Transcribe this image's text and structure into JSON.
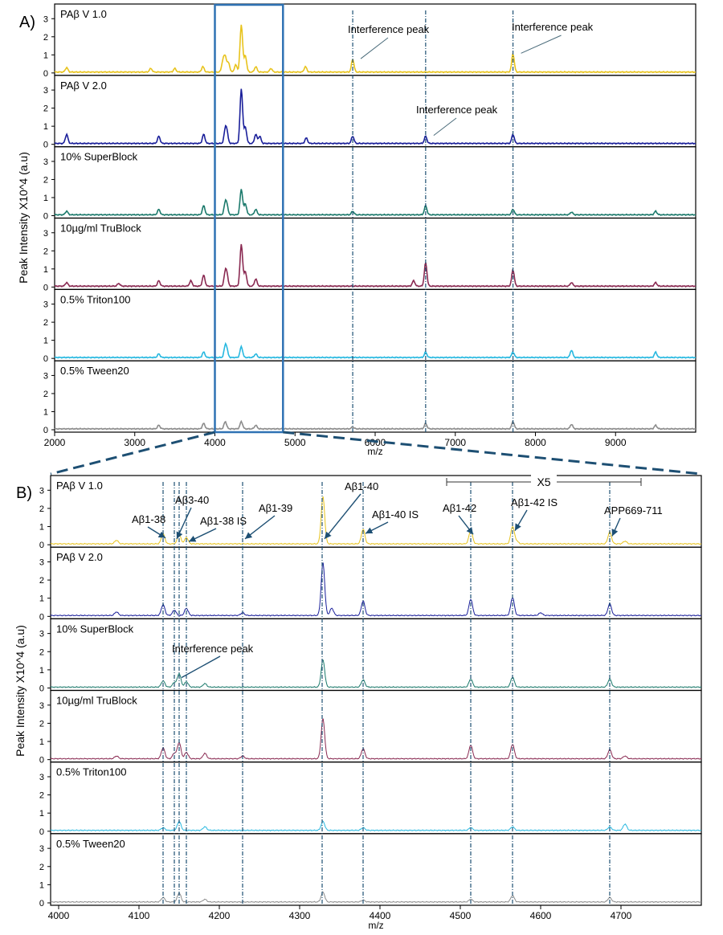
{
  "colors": {
    "pab_v1": "#e8c31c",
    "pab_v2": "#1a1f9a",
    "superblock": "#1c7a6c",
    "trublock": "#8a2a52",
    "triton": "#27b8e0",
    "tween": "#8c8c8c",
    "guide": "#1d4f73",
    "zoom_box": "#2f72b4"
  },
  "chart_data": [
    {
      "type": "line",
      "panel_label": "A)",
      "xlabel": "m/z",
      "ylabel": "Peak Intensity X10^4 (a.u)",
      "xlim": [
        2000,
        10000
      ],
      "ylim": [
        0,
        3.5
      ],
      "xticks": [
        2000,
        3000,
        4000,
        5000,
        6000,
        7000,
        8000,
        9000
      ],
      "yticks": [
        0,
        1,
        2,
        3
      ],
      "zoom_region": [
        4000,
        4850
      ],
      "guide_lines": [
        5720,
        6630,
        7720
      ],
      "series": [
        {
          "name": "PAβ V 1.0",
          "color_key": "pab_v1",
          "peaks": [
            [
              2150,
              0.25
            ],
            [
              3200,
              0.2
            ],
            [
              3500,
              0.2
            ],
            [
              3850,
              0.3
            ],
            [
              4100,
              0.6
            ],
            [
              4130,
              0.8
            ],
            [
              4170,
              0.5
            ],
            [
              4260,
              0.4
            ],
            [
              4330,
              2.6
            ],
            [
              4380,
              0.9
            ],
            [
              4510,
              0.3
            ],
            [
              4700,
              0.2
            ],
            [
              5130,
              0.3
            ],
            [
              5720,
              0.7
            ],
            [
              7720,
              1.0
            ]
          ]
        },
        {
          "name": "PAβ V 2.0",
          "color_key": "pab_v2",
          "peaks": [
            [
              2150,
              0.5
            ],
            [
              3300,
              0.4
            ],
            [
              3860,
              0.5
            ],
            [
              4130,
              0.7
            ],
            [
              4150,
              0.5
            ],
            [
              4330,
              3.0
            ],
            [
              4380,
              0.9
            ],
            [
              4510,
              0.5
            ],
            [
              4560,
              0.4
            ],
            [
              5140,
              0.3
            ],
            [
              5720,
              0.4
            ],
            [
              6630,
              0.4
            ],
            [
              7720,
              0.5
            ]
          ]
        },
        {
          "name": "10% SuperBlock",
          "color_key": "superblock",
          "peaks": [
            [
              2150,
              0.2
            ],
            [
              3300,
              0.3
            ],
            [
              3860,
              0.5
            ],
            [
              4130,
              0.6
            ],
            [
              4150,
              0.4
            ],
            [
              4330,
              1.4
            ],
            [
              4380,
              0.6
            ],
            [
              4510,
              0.3
            ],
            [
              5720,
              0.2
            ],
            [
              6630,
              0.5
            ],
            [
              7720,
              0.3
            ],
            [
              8450,
              0.15
            ],
            [
              9500,
              0.2
            ]
          ]
        },
        {
          "name": "10µg/ml TruBlock",
          "color_key": "trublock",
          "peaks": [
            [
              2150,
              0.2
            ],
            [
              2800,
              0.15
            ],
            [
              3300,
              0.3
            ],
            [
              3700,
              0.3
            ],
            [
              3860,
              0.6
            ],
            [
              4130,
              0.7
            ],
            [
              4150,
              0.5
            ],
            [
              4330,
              2.3
            ],
            [
              4380,
              0.8
            ],
            [
              4510,
              0.4
            ],
            [
              6480,
              0.3
            ],
            [
              6630,
              1.3
            ],
            [
              7720,
              0.9
            ],
            [
              8450,
              0.2
            ],
            [
              9500,
              0.2
            ]
          ]
        },
        {
          "name": "0.5% Triton100",
          "color_key": "triton",
          "peaks": [
            [
              3300,
              0.2
            ],
            [
              3860,
              0.3
            ],
            [
              4130,
              0.6
            ],
            [
              4150,
              0.3
            ],
            [
              4330,
              0.6
            ],
            [
              4510,
              0.2
            ],
            [
              6630,
              0.3
            ],
            [
              7720,
              0.3
            ],
            [
              8450,
              0.4
            ],
            [
              9500,
              0.3
            ]
          ]
        },
        {
          "name": "0.5% Tween20",
          "color_key": "tween",
          "peaks": [
            [
              3300,
              0.2
            ],
            [
              3860,
              0.3
            ],
            [
              4130,
              0.4
            ],
            [
              4330,
              0.4
            ],
            [
              4510,
              0.2
            ],
            [
              5720,
              0.1
            ],
            [
              6630,
              0.3
            ],
            [
              7720,
              0.4
            ],
            [
              8450,
              0.25
            ],
            [
              9500,
              0.2
            ]
          ]
        }
      ],
      "annotations": [
        {
          "text": "Interference peak",
          "x": 5720,
          "series": 0
        },
        {
          "text": "Interference peak",
          "x": 7720,
          "series": 0
        },
        {
          "text": "Interference peak",
          "x": 6630,
          "series": 1
        }
      ]
    },
    {
      "type": "line",
      "panel_label": "B)",
      "xlabel": "m/z",
      "ylabel": "Peak Intensity X10^4 (a.u)",
      "xlim": [
        3990,
        4800
      ],
      "ylim": [
        0,
        3.5
      ],
      "xticks": [
        4000,
        4100,
        4200,
        4300,
        4400,
        4500,
        4600,
        4700
      ],
      "yticks": [
        0,
        1,
        2,
        3
      ],
      "scale_bar": {
        "label": "X5",
        "from": 4483,
        "to": 4725
      },
      "guide_lines": [
        4130,
        4144,
        4150,
        4159,
        4229,
        4328,
        4379,
        4513,
        4565,
        4686
      ],
      "series": [
        {
          "name": "PAβ V 1.0",
          "color_key": "pab_v1",
          "peaks": [
            [
              4072,
              0.2
            ],
            [
              4130,
              0.55
            ],
            [
              4150,
              0.5
            ],
            [
              4159,
              0.35
            ],
            [
              4329,
              2.6
            ],
            [
              4379,
              0.8
            ],
            [
              4513,
              0.75
            ],
            [
              4565,
              0.95
            ],
            [
              4686,
              0.65
            ],
            [
              4570,
              0.15
            ],
            [
              4705,
              0.15
            ]
          ]
        },
        {
          "name": "PAβ V 2.0",
          "color_key": "pab_v2",
          "peaks": [
            [
              4072,
              0.2
            ],
            [
              4130,
              0.6
            ],
            [
              4144,
              0.3
            ],
            [
              4159,
              0.4
            ],
            [
              4229,
              0.15
            ],
            [
              4329,
              2.9
            ],
            [
              4340,
              0.4
            ],
            [
              4379,
              0.8
            ],
            [
              4513,
              0.9
            ],
            [
              4565,
              1.0
            ],
            [
              4686,
              0.65
            ],
            [
              4600,
              0.15
            ]
          ]
        },
        {
          "name": "10% SuperBlock",
          "color_key": "superblock",
          "peaks": [
            [
              4130,
              0.35
            ],
            [
              4144,
              0.25
            ],
            [
              4150,
              0.75
            ],
            [
              4159,
              0.3
            ],
            [
              4182,
              0.2
            ],
            [
              4329,
              1.5
            ],
            [
              4379,
              0.4
            ],
            [
              4513,
              0.45
            ],
            [
              4565,
              0.55
            ],
            [
              4686,
              0.45
            ]
          ]
        },
        {
          "name": "10µg/ml TruBlock",
          "color_key": "trublock",
          "peaks": [
            [
              4072,
              0.15
            ],
            [
              4130,
              0.6
            ],
            [
              4144,
              0.3
            ],
            [
              4150,
              0.9
            ],
            [
              4159,
              0.35
            ],
            [
              4182,
              0.3
            ],
            [
              4229,
              0.15
            ],
            [
              4329,
              2.2
            ],
            [
              4379,
              0.55
            ],
            [
              4513,
              0.75
            ],
            [
              4565,
              0.8
            ],
            [
              4686,
              0.5
            ],
            [
              4705,
              0.15
            ]
          ]
        },
        {
          "name": "0.5% Triton100",
          "color_key": "triton",
          "peaks": [
            [
              4130,
              0.15
            ],
            [
              4150,
              0.5
            ],
            [
              4182,
              0.2
            ],
            [
              4329,
              0.5
            ],
            [
              4379,
              0.15
            ],
            [
              4513,
              0.15
            ],
            [
              4565,
              0.2
            ],
            [
              4686,
              0.2
            ],
            [
              4705,
              0.35
            ]
          ]
        },
        {
          "name": "0.5% Tween20",
          "color_key": "tween",
          "peaks": [
            [
              4130,
              0.25
            ],
            [
              4150,
              0.5
            ],
            [
              4182,
              0.15
            ],
            [
              4329,
              0.55
            ],
            [
              4379,
              0.1
            ],
            [
              4513,
              0.15
            ],
            [
              4565,
              0.35
            ],
            [
              4686,
              0.25
            ]
          ]
        }
      ],
      "annotations": [
        {
          "text": "Aβ1-38",
          "x": 4130,
          "series": 0
        },
        {
          "text": "Aβ3-40",
          "x": 4144,
          "series": 0
        },
        {
          "text": "Aβ1-38 IS",
          "x": 4159,
          "series": 0
        },
        {
          "text": "Aβ1-39",
          "x": 4229,
          "series": 0
        },
        {
          "text": "Aβ1-40",
          "x": 4328,
          "series": 0
        },
        {
          "text": "Aβ1-40 IS",
          "x": 4379,
          "series": 0
        },
        {
          "text": "Aβ1-42",
          "x": 4513,
          "series": 0
        },
        {
          "text": "Aβ1-42 IS",
          "x": 4565,
          "series": 0
        },
        {
          "text": "APP669-711",
          "x": 4686,
          "series": 0
        },
        {
          "text": "Interference peak",
          "x": 4150,
          "series": 2
        }
      ]
    }
  ]
}
